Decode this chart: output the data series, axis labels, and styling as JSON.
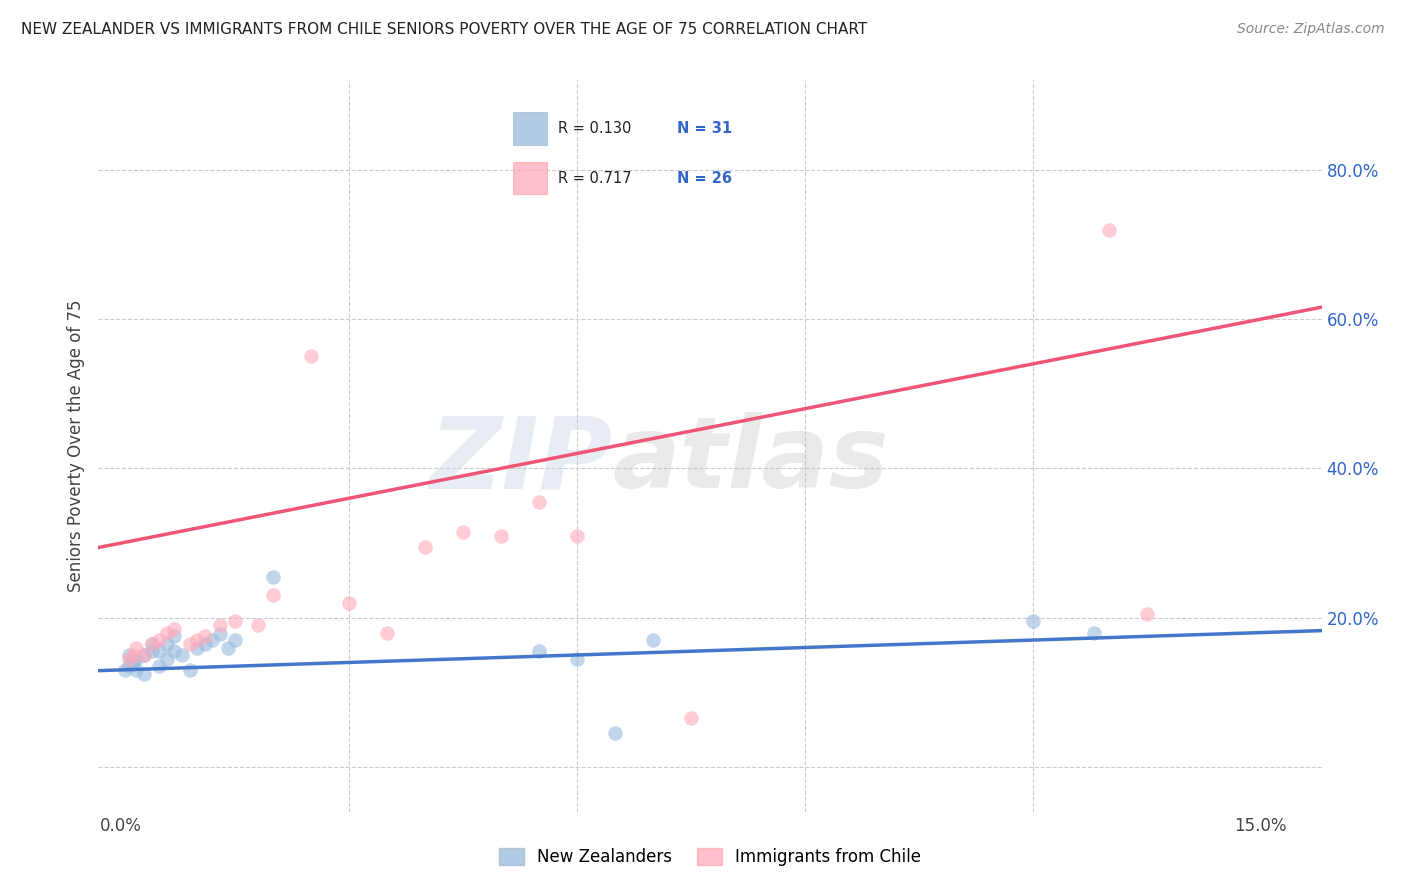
{
  "title": "NEW ZEALANDER VS IMMIGRANTS FROM CHILE SENIORS POVERTY OVER THE AGE OF 75 CORRELATION CHART",
  "source": "Source: ZipAtlas.com",
  "ylabel": "Seniors Poverty Over the Age of 75",
  "xlim": [
    -0.003,
    0.158
  ],
  "ylim": [
    -0.06,
    0.92
  ],
  "legend_R1": "R = 0.130",
  "legend_N1": "N = 31",
  "legend_R2": "R = 0.717",
  "legend_N2": "N = 26",
  "legend_label1": "New Zealanders",
  "legend_label2": "Immigrants from Chile",
  "blue_color": "#99BBDD",
  "pink_color": "#FFAABB",
  "blue_line_color": "#4477CC",
  "pink_line_color": "#EE5577",
  "blue_scatter_alpha": 0.6,
  "pink_scatter_alpha": 0.6,
  "marker_size": 110,
  "nz_x": [
    0.0005,
    0.001,
    0.001,
    0.0015,
    0.002,
    0.002,
    0.003,
    0.003,
    0.004,
    0.004,
    0.005,
    0.005,
    0.006,
    0.006,
    0.007,
    0.007,
    0.008,
    0.009,
    0.01,
    0.011,
    0.012,
    0.013,
    0.014,
    0.015,
    0.02,
    0.055,
    0.06,
    0.065,
    0.07,
    0.12,
    0.128
  ],
  "nz_y": [
    0.13,
    0.135,
    0.15,
    0.14,
    0.13,
    0.145,
    0.125,
    0.15,
    0.155,
    0.165,
    0.135,
    0.155,
    0.145,
    0.165,
    0.155,
    0.175,
    0.15,
    0.13,
    0.16,
    0.165,
    0.17,
    0.178,
    0.16,
    0.17,
    0.255,
    0.155,
    0.145,
    0.045,
    0.17,
    0.195,
    0.18
  ],
  "chile_x": [
    0.001,
    0.0015,
    0.002,
    0.003,
    0.004,
    0.005,
    0.006,
    0.007,
    0.009,
    0.01,
    0.011,
    0.013,
    0.015,
    0.018,
    0.02,
    0.025,
    0.03,
    0.035,
    0.04,
    0.045,
    0.05,
    0.055,
    0.06,
    0.075,
    0.13,
    0.135
  ],
  "chile_y": [
    0.145,
    0.15,
    0.16,
    0.15,
    0.165,
    0.17,
    0.18,
    0.185,
    0.165,
    0.17,
    0.175,
    0.19,
    0.195,
    0.19,
    0.23,
    0.55,
    0.22,
    0.18,
    0.295,
    0.315,
    0.31,
    0.355,
    0.31,
    0.065,
    0.72,
    0.205
  ],
  "watermark_zip": "ZIP",
  "watermark_atlas": "atlas",
  "grid_color": "#CCCCCC",
  "bg_color": "#FFFFFF",
  "ytick_labels": [
    "",
    "20.0%",
    "40.0%",
    "60.0%",
    "80.0%"
  ],
  "ytick_vals": [
    0.0,
    0.2,
    0.4,
    0.6,
    0.8
  ],
  "xtick_labels": [
    "0.0%",
    "",
    "",
    "",
    "",
    "15.0%"
  ],
  "xtick_vals": [
    0.0,
    0.03,
    0.06,
    0.09,
    0.12,
    0.15
  ],
  "grid_xtick_vals": [
    0.03,
    0.06,
    0.09,
    0.12
  ]
}
